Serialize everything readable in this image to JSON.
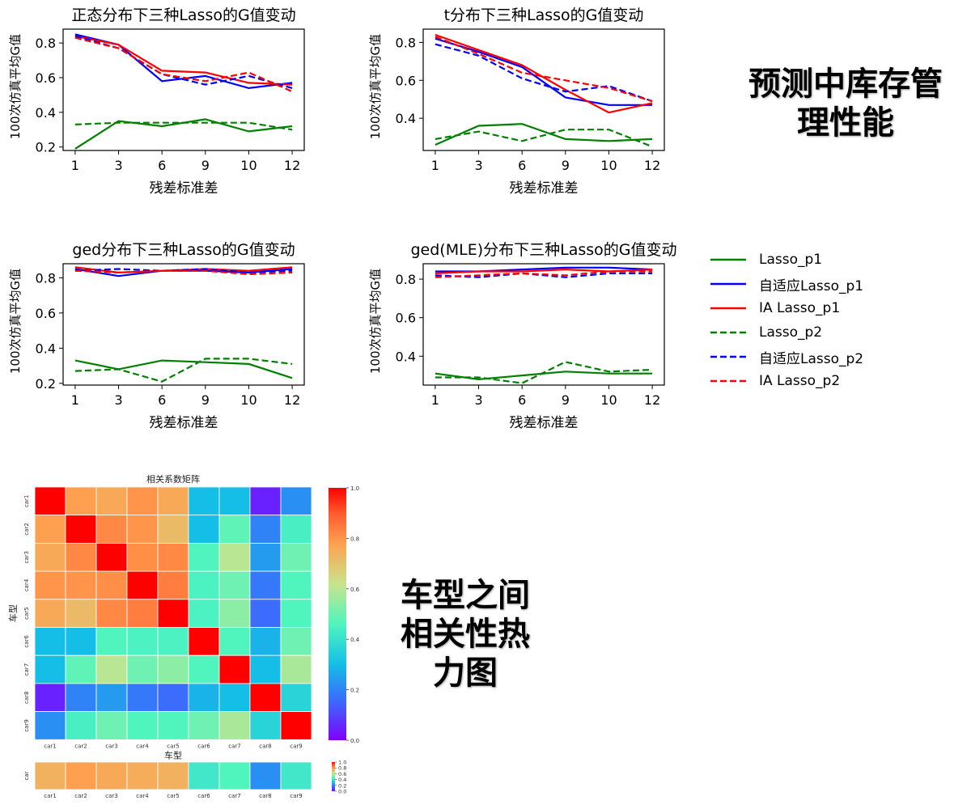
{
  "captions": {
    "forecast_lines": [
      "预测中库存管",
      "理性能"
    ],
    "heatmap_lines": [
      "车型之间",
      "相关性热",
      "力图"
    ]
  },
  "legend": {
    "entries": [
      {
        "label": "Lasso_p1",
        "color": "#008000",
        "dash": false
      },
      {
        "label": "自适应Lasso_p1",
        "color": "#0000ff",
        "dash": false
      },
      {
        "label": "IA Lasso_p1",
        "color": "#ff0000",
        "dash": false
      },
      {
        "label": "Lasso_p2",
        "color": "#008000",
        "dash": true
      },
      {
        "label": "自适应Lasso_p2",
        "color": "#0000ff",
        "dash": true
      },
      {
        "label": "IA Lasso_p2",
        "color": "#ff0000",
        "dash": true
      }
    ]
  },
  "chart_data": [
    {
      "type": "line",
      "title": "正态分布下三种Lasso的G值变动",
      "xlabel": "残差标准差",
      "ylabel": "100次仿真平均G值",
      "categories": [
        "1",
        "3",
        "6",
        "9",
        "10",
        "12"
      ],
      "yticks": [
        0.2,
        0.4,
        0.6,
        0.8
      ],
      "ylim": [
        0.18,
        0.88
      ],
      "series": [
        {
          "name": "Lasso_p1",
          "color": "#008000",
          "dash": false,
          "values": [
            0.19,
            0.35,
            0.32,
            0.36,
            0.29,
            0.32
          ]
        },
        {
          "name": "自适应Lasso_p1",
          "color": "#0000ff",
          "dash": false,
          "values": [
            0.85,
            0.79,
            0.58,
            0.61,
            0.54,
            0.57
          ]
        },
        {
          "name": "IA Lasso_p1",
          "color": "#ff0000",
          "dash": false,
          "values": [
            0.84,
            0.79,
            0.64,
            0.63,
            0.57,
            0.56
          ]
        },
        {
          "name": "Lasso_p2",
          "color": "#008000",
          "dash": true,
          "values": [
            0.33,
            0.34,
            0.34,
            0.34,
            0.34,
            0.3
          ]
        },
        {
          "name": "自适应Lasso_p2",
          "color": "#0000ff",
          "dash": true,
          "values": [
            0.84,
            0.77,
            0.62,
            0.56,
            0.61,
            0.54
          ]
        },
        {
          "name": "IA Lasso_p2",
          "color": "#ff0000",
          "dash": true,
          "values": [
            0.83,
            0.77,
            0.62,
            0.58,
            0.63,
            0.52
          ]
        }
      ]
    },
    {
      "type": "line",
      "title": "t分布下三种Lasso的G值变动",
      "xlabel": "残差标准差",
      "ylabel": "100次仿真平均G值",
      "categories": [
        "1",
        "3",
        "6",
        "9",
        "10",
        "12"
      ],
      "yticks": [
        0.4,
        0.6,
        0.8
      ],
      "ylim": [
        0.23,
        0.87
      ],
      "series": [
        {
          "name": "Lasso_p1",
          "color": "#008000",
          "dash": false,
          "values": [
            0.26,
            0.36,
            0.37,
            0.29,
            0.28,
            0.29
          ]
        },
        {
          "name": "自适应Lasso_p1",
          "color": "#0000ff",
          "dash": false,
          "values": [
            0.82,
            0.75,
            0.67,
            0.51,
            0.47,
            0.47
          ]
        },
        {
          "name": "IA Lasso_p1",
          "color": "#ff0000",
          "dash": false,
          "values": [
            0.84,
            0.76,
            0.68,
            0.55,
            0.43,
            0.48
          ]
        },
        {
          "name": "Lasso_p2",
          "color": "#008000",
          "dash": true,
          "values": [
            0.29,
            0.33,
            0.28,
            0.34,
            0.34,
            0.25
          ]
        },
        {
          "name": "自适应Lasso_p2",
          "color": "#0000ff",
          "dash": true,
          "values": [
            0.79,
            0.73,
            0.61,
            0.54,
            0.57,
            0.49
          ]
        },
        {
          "name": "IA Lasso_p2",
          "color": "#ff0000",
          "dash": true,
          "values": [
            0.83,
            0.74,
            0.64,
            0.6,
            0.56,
            0.49
          ]
        }
      ]
    },
    {
      "type": "line",
      "title": "ged分布下三种Lasso的G值变动",
      "xlabel": "残差标准差",
      "ylabel": "100次仿真平均G值",
      "categories": [
        "1",
        "3",
        "6",
        "9",
        "10",
        "12"
      ],
      "yticks": [
        0.2,
        0.4,
        0.6,
        0.8
      ],
      "ylim": [
        0.19,
        0.88
      ],
      "series": [
        {
          "name": "Lasso_p1",
          "color": "#008000",
          "dash": false,
          "values": [
            0.33,
            0.28,
            0.33,
            0.32,
            0.31,
            0.23
          ]
        },
        {
          "name": "自适应Lasso_p1",
          "color": "#0000ff",
          "dash": false,
          "values": [
            0.85,
            0.81,
            0.84,
            0.84,
            0.83,
            0.85
          ]
        },
        {
          "name": "IA Lasso_p1",
          "color": "#ff0000",
          "dash": false,
          "values": [
            0.86,
            0.83,
            0.84,
            0.85,
            0.84,
            0.86
          ]
        },
        {
          "name": "Lasso_p2",
          "color": "#008000",
          "dash": true,
          "values": [
            0.27,
            0.28,
            0.21,
            0.34,
            0.34,
            0.31
          ]
        },
        {
          "name": "自适应Lasso_p2",
          "color": "#0000ff",
          "dash": true,
          "values": [
            0.84,
            0.85,
            0.84,
            0.85,
            0.83,
            0.84
          ]
        },
        {
          "name": "IA Lasso_p2",
          "color": "#ff0000",
          "dash": true,
          "values": [
            0.84,
            0.83,
            0.84,
            0.84,
            0.82,
            0.83
          ]
        }
      ]
    },
    {
      "type": "line",
      "title": "ged(MLE)分布下三种Lasso的G值变动",
      "xlabel": "残差标准差",
      "ylabel": "100次仿真平均G值",
      "categories": [
        "1",
        "3",
        "6",
        "9",
        "10",
        "12"
      ],
      "yticks": [
        0.4,
        0.6,
        0.8
      ],
      "ylim": [
        0.25,
        0.88
      ],
      "series": [
        {
          "name": "Lasso_p1",
          "color": "#008000",
          "dash": false,
          "values": [
            0.31,
            0.28,
            0.3,
            0.32,
            0.31,
            0.31
          ]
        },
        {
          "name": "自适应Lasso_p1",
          "color": "#0000ff",
          "dash": false,
          "values": [
            0.84,
            0.84,
            0.85,
            0.86,
            0.86,
            0.85
          ]
        },
        {
          "name": "IA Lasso_p1",
          "color": "#ff0000",
          "dash": false,
          "values": [
            0.83,
            0.84,
            0.84,
            0.85,
            0.84,
            0.85
          ]
        },
        {
          "name": "Lasso_p2",
          "color": "#008000",
          "dash": true,
          "values": [
            0.29,
            0.29,
            0.26,
            0.37,
            0.32,
            0.33
          ]
        },
        {
          "name": "自适应Lasso_p2",
          "color": "#0000ff",
          "dash": true,
          "values": [
            0.82,
            0.81,
            0.83,
            0.81,
            0.83,
            0.83
          ]
        },
        {
          "name": "IA Lasso_p2",
          "color": "#ff0000",
          "dash": true,
          "values": [
            0.81,
            0.82,
            0.83,
            0.82,
            0.84,
            0.84
          ]
        }
      ]
    },
    {
      "type": "heatmap",
      "title": "相关系数矩阵",
      "xlabel": "车型",
      "ylabel": "车型",
      "labels": [
        "car1",
        "car2",
        "car3",
        "car4",
        "car5",
        "car6",
        "car7",
        "car8",
        "car9"
      ],
      "colorbar_ticks": [
        "0.0",
        "0.2",
        "0.4",
        "0.6",
        "0.8",
        "1.0"
      ],
      "values": [
        [
          1.0,
          0.78,
          0.76,
          0.8,
          0.76,
          0.3,
          0.3,
          0.05,
          0.22
        ],
        [
          0.78,
          1.0,
          0.82,
          0.8,
          0.72,
          0.3,
          0.48,
          0.2,
          0.44
        ],
        [
          0.76,
          0.82,
          1.0,
          0.81,
          0.82,
          0.46,
          0.6,
          0.24,
          0.5
        ],
        [
          0.8,
          0.8,
          0.81,
          1.0,
          0.84,
          0.45,
          0.5,
          0.18,
          0.46
        ],
        [
          0.76,
          0.72,
          0.82,
          0.84,
          1.0,
          0.45,
          0.54,
          0.16,
          0.46
        ],
        [
          0.3,
          0.3,
          0.46,
          0.45,
          0.45,
          1.0,
          0.46,
          0.28,
          0.5
        ],
        [
          0.3,
          0.48,
          0.6,
          0.5,
          0.54,
          0.46,
          1.0,
          0.3,
          0.58
        ],
        [
          0.05,
          0.2,
          0.24,
          0.18,
          0.16,
          0.28,
          0.3,
          1.0,
          0.36
        ],
        [
          0.22,
          0.44,
          0.5,
          0.46,
          0.46,
          0.5,
          0.58,
          0.36,
          1.0
        ]
      ]
    },
    {
      "type": "heatmap",
      "ylabel": "car",
      "labels": [
        "car1",
        "car2",
        "car3",
        "car4",
        "car5",
        "car6",
        "car7",
        "car8",
        "car9"
      ],
      "colorbar_ticks": [
        "0.0",
        "0.2",
        "0.4",
        "0.6",
        "0.8",
        "1.0"
      ],
      "values": [
        [
          0.74,
          0.78,
          0.76,
          0.75,
          0.74,
          0.42,
          0.46,
          0.22,
          0.42
        ]
      ]
    }
  ]
}
